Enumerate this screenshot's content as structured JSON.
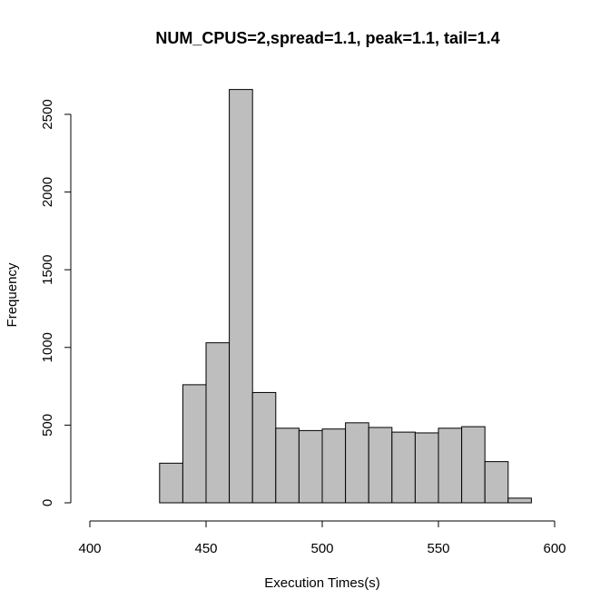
{
  "chart_data": {
    "type": "bar",
    "title": "NUM_CPUS=2,spread=1.1, peak=1.1, tail=1.4",
    "xlabel": "Execution Times(s)",
    "ylabel": "Frequency",
    "bins": [
      {
        "from": 430,
        "to": 440,
        "count": 255
      },
      {
        "from": 440,
        "to": 450,
        "count": 760
      },
      {
        "from": 450,
        "to": 460,
        "count": 1030
      },
      {
        "from": 460,
        "to": 470,
        "count": 2660
      },
      {
        "from": 470,
        "to": 480,
        "count": 710
      },
      {
        "from": 480,
        "to": 490,
        "count": 480
      },
      {
        "from": 490,
        "to": 500,
        "count": 465
      },
      {
        "from": 500,
        "to": 510,
        "count": 475
      },
      {
        "from": 510,
        "to": 520,
        "count": 515
      },
      {
        "from": 520,
        "to": 530,
        "count": 485
      },
      {
        "from": 530,
        "to": 540,
        "count": 455
      },
      {
        "from": 540,
        "to": 550,
        "count": 450
      },
      {
        "from": 550,
        "to": 560,
        "count": 480
      },
      {
        "from": 560,
        "to": 570,
        "count": 490
      },
      {
        "from": 570,
        "to": 580,
        "count": 265
      },
      {
        "from": 580,
        "to": 590,
        "count": 30
      }
    ],
    "xlim": [
      400,
      600
    ],
    "ylim": [
      0,
      2500
    ],
    "x_ticks": [
      "400",
      "450",
      "500",
      "550",
      "600"
    ],
    "y_ticks": [
      "0",
      "500",
      "1000",
      "1500",
      "2000",
      "2500"
    ],
    "grid": false,
    "colors": {
      "bar_fill": "#bebebe",
      "bar_stroke": "#000000"
    }
  }
}
